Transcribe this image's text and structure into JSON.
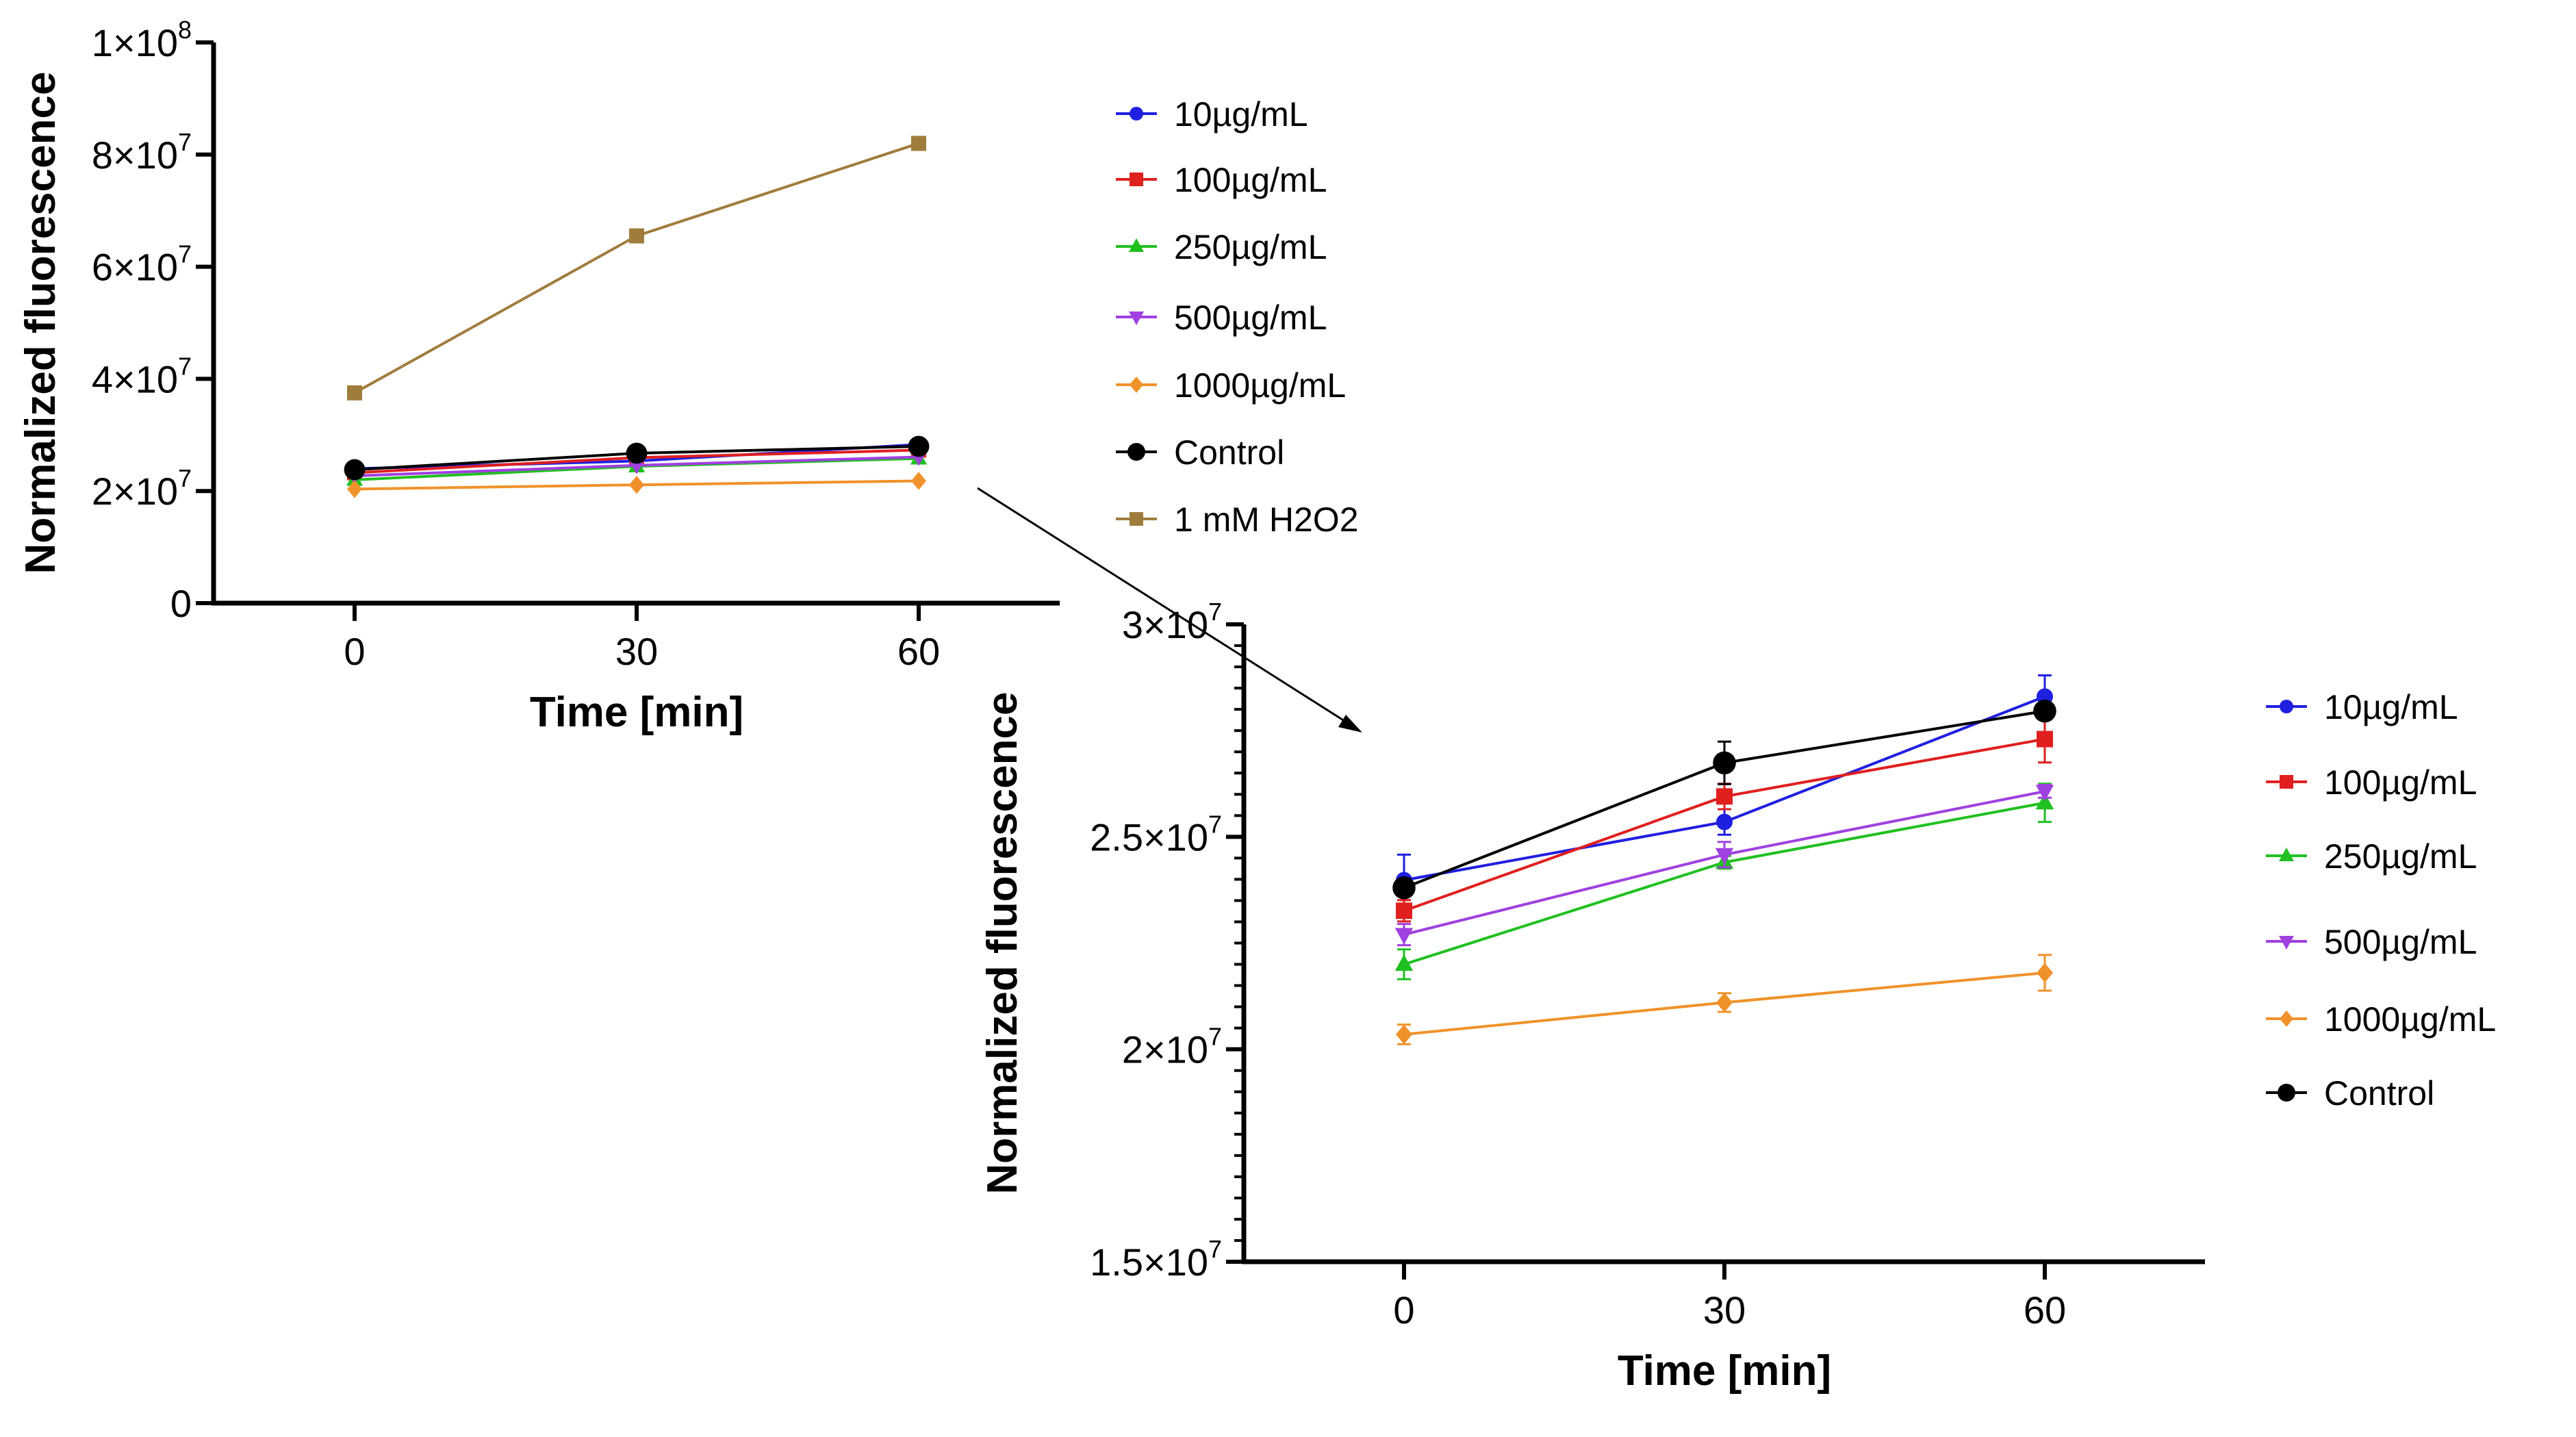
{
  "chart_data": [
    {
      "type": "line",
      "title": "",
      "xlabel": "Time [min]",
      "ylabel": "Normalized fluorescence",
      "x": [
        0,
        30,
        60
      ],
      "xlim": [
        -15,
        75
      ],
      "ylim": [
        0,
        100000000
      ],
      "yticks": [
        0,
        20000000,
        40000000,
        60000000,
        80000000,
        100000000
      ],
      "ytick_labels": [
        "0",
        "2×10^7",
        "4×10^7",
        "6×10^7",
        "8×10^7",
        "1×10^8"
      ],
      "xtick_labels": [
        "0",
        "30",
        "60"
      ],
      "legend_position": "right",
      "series": [
        {
          "name": "10µg/mL",
          "color": "#1f1fe0",
          "marker": "circle",
          "values": [
            23980000,
            25350000,
            28300000
          ]
        },
        {
          "name": "100µg/mL",
          "color": "#e01f1f",
          "marker": "square",
          "values": [
            23260000,
            25950000,
            27300000
          ]
        },
        {
          "name": "250µg/mL",
          "color": "#20c020",
          "marker": "triangle-up",
          "values": [
            22000000,
            24400000,
            25800000
          ]
        },
        {
          "name": "500µg/mL",
          "color": "#a040e0",
          "marker": "triangle-down",
          "values": [
            22700000,
            24580000,
            26070000
          ]
        },
        {
          "name": "1000µg/mL",
          "color": "#f0922a",
          "marker": "diamond",
          "values": [
            20350000,
            21100000,
            21800000
          ]
        },
        {
          "name": "Control",
          "color": "#000000",
          "marker": "circle",
          "values": [
            23800000,
            26740000,
            27960000
          ]
        },
        {
          "name": "1 mM H2O2",
          "color": "#a07c3c",
          "marker": "square",
          "values": [
            37500000,
            65500000,
            82000000
          ]
        }
      ]
    },
    {
      "type": "line",
      "title": "",
      "xlabel": "Time [min]",
      "ylabel": "Normalized fluorescence",
      "x": [
        0,
        30,
        60
      ],
      "xlim": [
        -15,
        75
      ],
      "ylim": [
        15000000,
        30000000
      ],
      "yticks": [
        15000000,
        20000000,
        25000000,
        30000000
      ],
      "ytick_labels": [
        "1.5×10^7",
        "2×10^7",
        "2.5×10^7",
        "3×10^7"
      ],
      "xtick_labels": [
        "0",
        "30",
        "60"
      ],
      "legend_position": "right",
      "series": [
        {
          "name": "10µg/mL",
          "color": "#1f1fe0",
          "marker": "circle",
          "values": [
            23980000,
            25350000,
            28300000
          ],
          "errors": [
            600000,
            300000,
            500000
          ]
        },
        {
          "name": "100µg/mL",
          "color": "#e01f1f",
          "marker": "square",
          "values": [
            23260000,
            25950000,
            27300000
          ],
          "errors": [
            250000,
            300000,
            550000
          ]
        },
        {
          "name": "250µg/mL",
          "color": "#20c020",
          "marker": "triangle-up",
          "values": [
            22000000,
            24400000,
            25800000
          ],
          "errors": [
            350000,
            150000,
            450000
          ]
        },
        {
          "name": "500µg/mL",
          "color": "#a040e0",
          "marker": "triangle-down",
          "values": [
            22700000,
            24580000,
            26070000
          ],
          "errors": [
            250000,
            300000,
            150000
          ]
        },
        {
          "name": "1000µg/mL",
          "color": "#f0922a",
          "marker": "diamond",
          "values": [
            20350000,
            21100000,
            21800000
          ],
          "errors": [
            230000,
            220000,
            420000
          ]
        },
        {
          "name": "Control",
          "color": "#000000",
          "marker": "circle",
          "values": [
            23800000,
            26740000,
            27960000
          ],
          "errors": [
            150000,
            500000,
            200000
          ]
        }
      ]
    }
  ]
}
